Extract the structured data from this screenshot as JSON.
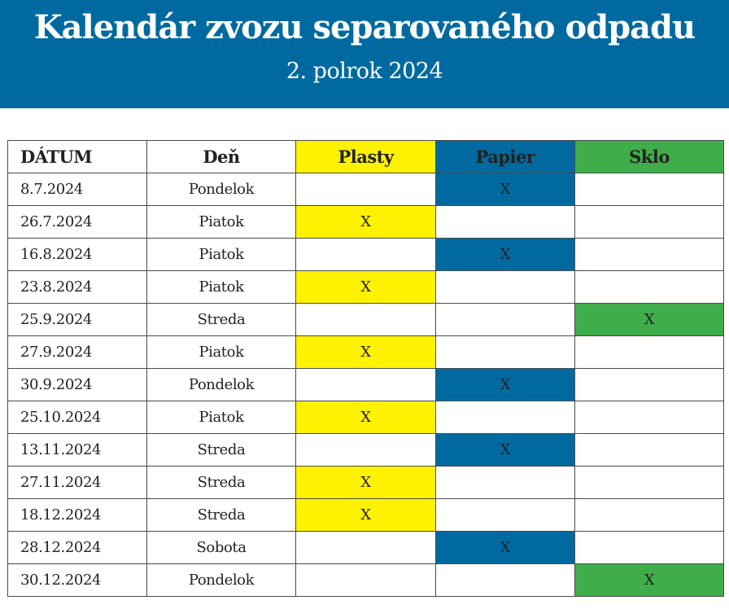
{
  "header": {
    "title": "Kalendár zvozu separovaného odpadu",
    "subtitle": "2. polrok 2024",
    "background_color": "#006aa0"
  },
  "table": {
    "columns": [
      {
        "key": "date",
        "label": "DÁTUM"
      },
      {
        "key": "day",
        "label": "Deň"
      },
      {
        "key": "plasty",
        "label": "Plasty",
        "color": "#fff200"
      },
      {
        "key": "papier",
        "label": "Papier",
        "color": "#006aa0"
      },
      {
        "key": "sklo",
        "label": "Sklo",
        "color": "#3fad49"
      }
    ],
    "mark": "X",
    "rows": [
      {
        "date": "8.7.2024",
        "day": "Pondelok",
        "type": "papier"
      },
      {
        "date": "26.7.2024",
        "day": "Piatok",
        "type": "plasty"
      },
      {
        "date": "16.8.2024",
        "day": "Piatok",
        "type": "papier"
      },
      {
        "date": "23.8.2024",
        "day": "Piatok",
        "type": "plasty"
      },
      {
        "date": "25.9.2024",
        "day": "Streda",
        "type": "sklo"
      },
      {
        "date": "27.9.2024",
        "day": "Piatok",
        "type": "plasty"
      },
      {
        "date": "30.9.2024",
        "day": "Pondelok",
        "type": "papier"
      },
      {
        "date": "25.10.2024",
        "day": "Piatok",
        "type": "plasty"
      },
      {
        "date": "13.11.2024",
        "day": "Streda",
        "type": "papier"
      },
      {
        "date": "27.11.2024",
        "day": "Streda",
        "type": "plasty"
      },
      {
        "date": "18.12.2024",
        "day": "Streda",
        "type": "plasty"
      },
      {
        "date": "28.12.2024",
        "day": "Sobota",
        "type": "papier"
      },
      {
        "date": "30.12.2024",
        "day": "Pondelok",
        "type": "sklo"
      }
    ]
  }
}
